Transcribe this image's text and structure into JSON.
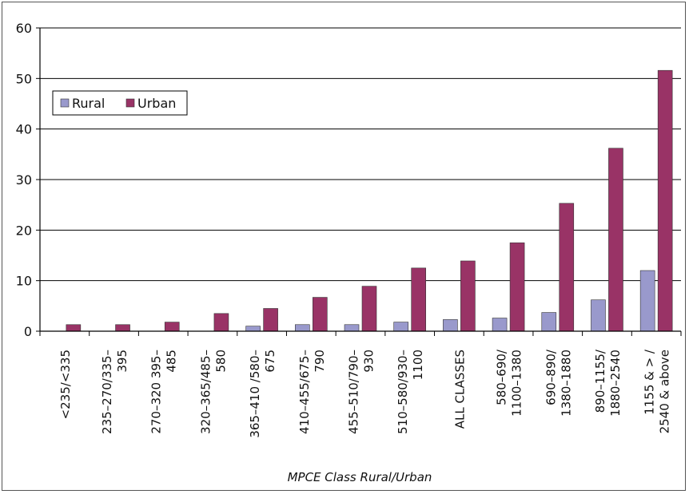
{
  "chart_data": {
    "type": "bar",
    "xlabel": "MPCE Class Rural/Urban",
    "ylabel": "",
    "ylim": [
      0,
      60
    ],
    "yticks": [
      0,
      10,
      20,
      30,
      40,
      50,
      60
    ],
    "grid": true,
    "legend_position": "top-left",
    "categories": [
      [
        "<235/<335"
      ],
      [
        "235–270/335–",
        "395"
      ],
      [
        "270–320 395–",
        "485"
      ],
      [
        "320–365/485–",
        "580"
      ],
      [
        "365–410 /580–",
        "675"
      ],
      [
        "410–455/675–",
        "790"
      ],
      [
        "455–510/790–",
        "930"
      ],
      [
        "510–580/930–",
        "1100"
      ],
      [
        "ALL CLASSES"
      ],
      [
        "580–690/",
        "1100–1380"
      ],
      [
        "690–890/",
        "1380–1880"
      ],
      [
        "890–1155/",
        "1880–2540"
      ],
      [
        "1155 & > /",
        "2540 & above"
      ]
    ],
    "series": [
      {
        "name": "Rural",
        "color": "#9999cc",
        "values": [
          0,
          0,
          0,
          0,
          1.0,
          1.3,
          1.3,
          1.8,
          2.3,
          2.6,
          3.7,
          6.2,
          12.0
        ]
      },
      {
        "name": "Urban",
        "color": "#993366",
        "values": [
          1.3,
          1.3,
          1.8,
          3.5,
          4.5,
          6.7,
          8.9,
          12.5,
          13.9,
          17.5,
          25.3,
          36.2,
          51.6
        ]
      }
    ]
  }
}
